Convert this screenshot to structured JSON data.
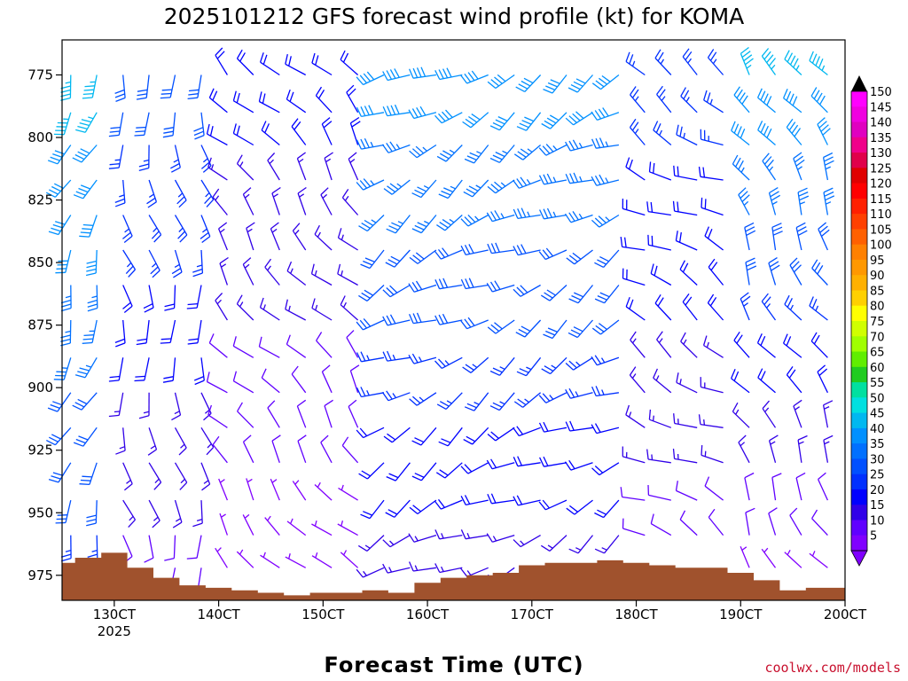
{
  "chart_data": {
    "type": "wind_barb_profile",
    "title": "2025101212 GFS forecast wind profile (kt) for KOMA",
    "xlabel": "Forecast Time (UTC)",
    "ylabel": "",
    "credit": "coolwx.com/models",
    "x_range_hours": [
      -6,
      84
    ],
    "x_ticks": [
      {
        "hour": 0,
        "label": "130CT",
        "sublabel": "2025"
      },
      {
        "hour": 12,
        "label": "140CT"
      },
      {
        "hour": 24,
        "label": "150CT"
      },
      {
        "hour": 36,
        "label": "160CT"
      },
      {
        "hour": 48,
        "label": "170CT"
      },
      {
        "hour": 60,
        "label": "180CT"
      },
      {
        "hour": 72,
        "label": "190CT"
      },
      {
        "hour": 84,
        "label": "200CT"
      }
    ],
    "y_range_hpa": [
      985,
      761
    ],
    "y_ticks": [
      775,
      800,
      825,
      850,
      875,
      900,
      925,
      950,
      975
    ],
    "barb_levels_hpa": [
      775,
      790,
      803,
      817,
      831,
      845,
      859,
      873,
      888,
      902,
      916,
      930,
      945,
      959,
      972
    ],
    "barb_interval_hours": 3,
    "surface_pressure_hpa": [
      {
        "hour": -6,
        "p": 970
      },
      {
        "hour": -3,
        "p": 968
      },
      {
        "hour": 0,
        "p": 966
      },
      {
        "hour": 3,
        "p": 972
      },
      {
        "hour": 6,
        "p": 976
      },
      {
        "hour": 9,
        "p": 979
      },
      {
        "hour": 12,
        "p": 980
      },
      {
        "hour": 15,
        "p": 981
      },
      {
        "hour": 18,
        "p": 982
      },
      {
        "hour": 21,
        "p": 983
      },
      {
        "hour": 24,
        "p": 982
      },
      {
        "hour": 27,
        "p": 982
      },
      {
        "hour": 30,
        "p": 981
      },
      {
        "hour": 33,
        "p": 982
      },
      {
        "hour": 36,
        "p": 978
      },
      {
        "hour": 39,
        "p": 976
      },
      {
        "hour": 42,
        "p": 975
      },
      {
        "hour": 45,
        "p": 974
      },
      {
        "hour": 48,
        "p": 971
      },
      {
        "hour": 51,
        "p": 970
      },
      {
        "hour": 54,
        "p": 970
      },
      {
        "hour": 57,
        "p": 969
      },
      {
        "hour": 60,
        "p": 970
      },
      {
        "hour": 63,
        "p": 971
      },
      {
        "hour": 66,
        "p": 972
      },
      {
        "hour": 69,
        "p": 972
      },
      {
        "hour": 72,
        "p": 974
      },
      {
        "hour": 75,
        "p": 977
      },
      {
        "hour": 78,
        "p": 981
      },
      {
        "hour": 81,
        "p": 980
      },
      {
        "hour": 84,
        "p": 980
      }
    ],
    "surface_color": "#a0522d",
    "wind_regimes": [
      {
        "hours": [
          -6,
          0
        ],
        "speed_kt": [
          25,
          45
        ],
        "direction_deg": 200
      },
      {
        "hours": [
          0,
          12
        ],
        "speed_kt": [
          10,
          30
        ],
        "direction_deg": 170
      },
      {
        "hours": [
          12,
          30
        ],
        "speed_kt": [
          5,
          20
        ],
        "direction_deg": 320
      },
      {
        "hours": [
          30,
          60
        ],
        "speed_kt": [
          15,
          40
        ],
        "direction_deg": 240
      },
      {
        "hours": [
          60,
          72
        ],
        "speed_kt": [
          10,
          25
        ],
        "direction_deg": 300
      },
      {
        "hours": [
          72,
          84
        ],
        "speed_kt": [
          5,
          45
        ],
        "direction_deg": 330
      }
    ],
    "colorbar": {
      "labels": [
        "150",
        "145",
        "140",
        "135",
        "130",
        "125",
        "120",
        "115",
        "110",
        "105",
        "100",
        "95",
        "90",
        "85",
        "80",
        "75",
        "70",
        "65",
        "60",
        "55",
        "50",
        "45",
        "40",
        "35",
        "30",
        "25",
        "20",
        "15",
        "10",
        "5"
      ],
      "colors": [
        "#ff00ff",
        "#f000e0",
        "#e000c0",
        "#f0008a",
        "#e0004a",
        "#e00000",
        "#ff0000",
        "#ff2000",
        "#ff4000",
        "#ff6000",
        "#ff8000",
        "#ff9800",
        "#ffb000",
        "#ffd000",
        "#ffff00",
        "#d0ff00",
        "#a0ff00",
        "#60ee00",
        "#20cc20",
        "#00e0a0",
        "#00e0e0",
        "#00b8f0",
        "#0090ff",
        "#0070ff",
        "#0050ff",
        "#0030ff",
        "#0000ff",
        "#3000e8",
        "#6000ff",
        "#8000ff"
      ]
    }
  }
}
